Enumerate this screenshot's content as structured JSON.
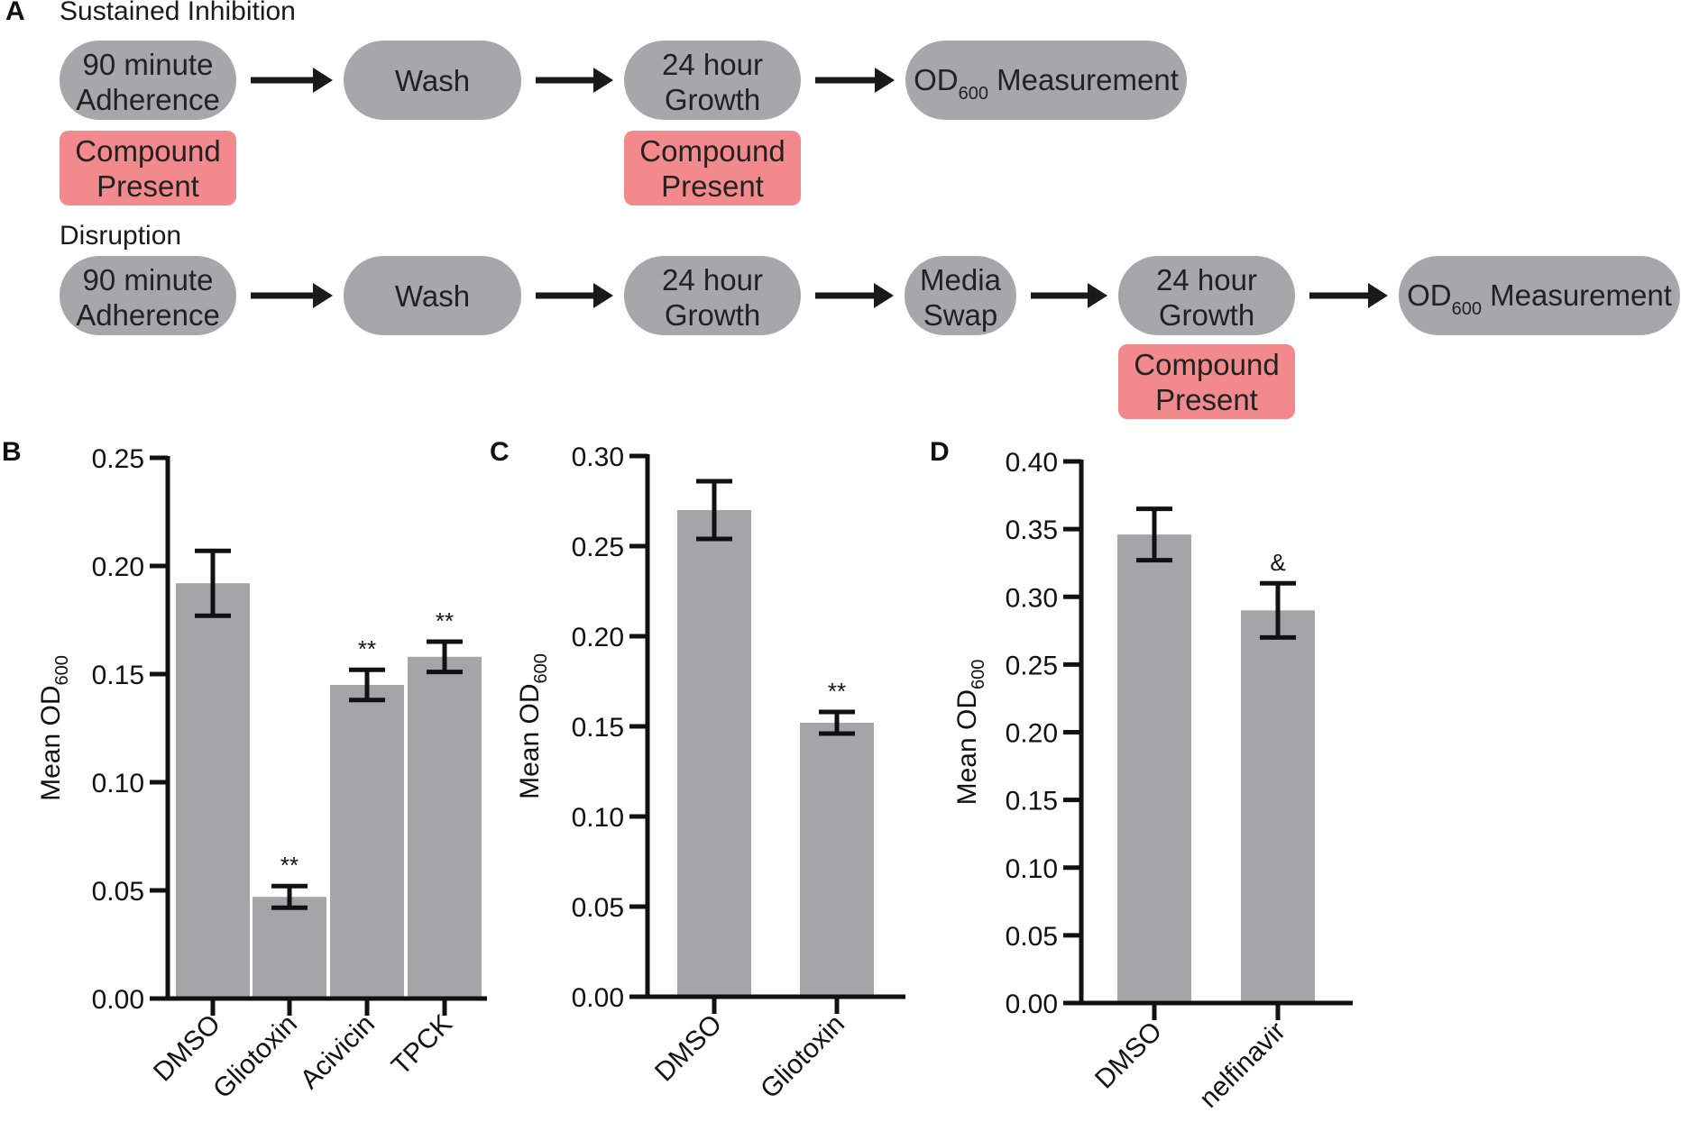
{
  "panel_a": {
    "label": "A",
    "rows": [
      {
        "title": "Sustained Inhibition",
        "steps": [
          {
            "lines": [
              "90 minute",
              "Adherence"
            ],
            "compound": [
              "Compound",
              "Present"
            ]
          },
          {
            "lines": [
              "Wash"
            ],
            "compound": null
          },
          {
            "lines": [
              "24 hour",
              "Growth"
            ],
            "compound": [
              "Compound",
              "Present"
            ]
          },
          {
            "lines": [
              "OD",
              "600",
              " Measurement"
            ],
            "od": true,
            "compound": null
          }
        ]
      },
      {
        "title": "Disruption",
        "steps": [
          {
            "lines": [
              "90 minute",
              "Adherence"
            ],
            "compound": null
          },
          {
            "lines": [
              "Wash"
            ],
            "compound": null
          },
          {
            "lines": [
              "24 hour",
              "Growth"
            ],
            "compound": null
          },
          {
            "lines": [
              "Media",
              "Swap"
            ],
            "compound": null
          },
          {
            "lines": [
              "24 hour",
              "Growth"
            ],
            "compound": [
              "Compound",
              "Present"
            ]
          },
          {
            "lines": [
              "OD",
              "600",
              " Measurement"
            ],
            "od": true,
            "compound": null
          }
        ]
      }
    ],
    "colors": {
      "node": "#a7a7ab",
      "compound": "#f2898d",
      "arrow": "#1a1a1a"
    }
  },
  "chart_data": [
    {
      "panel": "B",
      "type": "bar",
      "ylabel_main": "Mean OD",
      "ylabel_sub": "600",
      "categories": [
        "DMSO",
        "Gliotoxin",
        "Acivicin",
        "TPCK"
      ],
      "values": [
        0.192,
        0.047,
        0.145,
        0.158
      ],
      "errors": [
        0.015,
        0.005,
        0.007,
        0.007
      ],
      "annotations": [
        "",
        "**",
        "**",
        "**"
      ],
      "ylim": [
        0,
        0.25
      ],
      "yticks": [
        "0.00",
        "0.05",
        "0.10",
        "0.15",
        "0.20",
        "0.25"
      ],
      "bar_color": "#a5a5a9"
    },
    {
      "panel": "C",
      "type": "bar",
      "ylabel_main": "Mean OD",
      "ylabel_sub": "600",
      "categories": [
        "DMSO",
        "Gliotoxin"
      ],
      "values": [
        0.27,
        0.152
      ],
      "errors": [
        0.016,
        0.006
      ],
      "annotations": [
        "",
        "**"
      ],
      "ylim": [
        0,
        0.3
      ],
      "yticks": [
        "0.00",
        "0.05",
        "0.10",
        "0.15",
        "0.20",
        "0.25",
        "0.30"
      ],
      "bar_color": "#a5a5a9"
    },
    {
      "panel": "D",
      "type": "bar",
      "ylabel_main": "Mean OD",
      "ylabel_sub": "600",
      "categories": [
        "DMSO",
        "nelfinavir"
      ],
      "values": [
        0.346,
        0.29
      ],
      "errors": [
        0.019,
        0.02
      ],
      "annotations": [
        "",
        "&"
      ],
      "ylim": [
        0,
        0.4
      ],
      "yticks": [
        "0.00",
        "0.05",
        "0.10",
        "0.15",
        "0.20",
        "0.25",
        "0.30",
        "0.35",
        "0.40"
      ],
      "bar_color": "#a5a5a9"
    }
  ]
}
